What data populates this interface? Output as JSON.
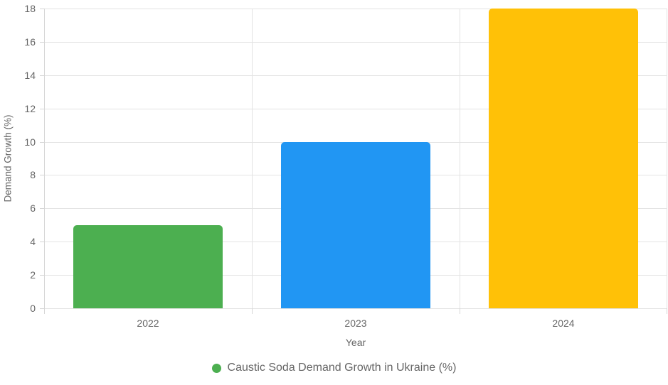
{
  "chart_data": {
    "type": "bar",
    "title": "",
    "categories": [
      "2022",
      "2023",
      "2024"
    ],
    "series": [
      {
        "name": "Caustic Soda Demand Growth in Ukraine (%)",
        "values": [
          5,
          10,
          18
        ]
      }
    ],
    "bar_colors": [
      "#4caf50",
      "#2196f3",
      "#ffc107"
    ],
    "xlabel": "Year",
    "ylabel": "Demand Growth (%)",
    "ylim": [
      0,
      18
    ],
    "yticks": [
      0,
      2,
      4,
      6,
      8,
      10,
      12,
      14,
      16,
      18
    ],
    "grid": true,
    "legend": {
      "position": "bottom",
      "marker_color": "#4caf50",
      "label": "Caustic Soda Demand Growth in Ukraine (%)"
    }
  }
}
